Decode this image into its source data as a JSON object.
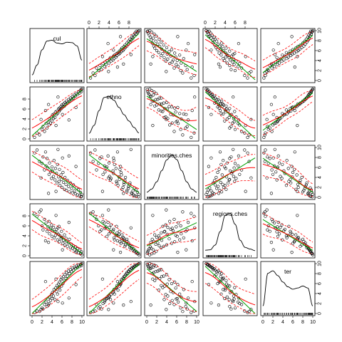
{
  "chart_data": {
    "type": "scatter-matrix",
    "variables": [
      "cul",
      "ethno",
      "minorities.ches",
      "regions.ches",
      "ter"
    ],
    "axis_range": [
      0,
      10
    ],
    "tick_labels": [
      "0",
      "2",
      "4",
      "6",
      "8",
      "10"
    ],
    "top_axis_ticks": [
      "0",
      "2",
      "4",
      "6",
      "8"
    ],
    "diagonal": "density with rug",
    "overlays": [
      "linear fit",
      "loess smooth",
      "loess spread bands"
    ],
    "colors": {
      "points": "#000000",
      "linear": "#00a000",
      "smooth": "#ff0000",
      "density": "#000000",
      "frame": "#000000"
    },
    "density_curves": {
      "cul": [
        [
          0,
          0.05
        ],
        [
          1,
          0.3
        ],
        [
          2,
          0.68
        ],
        [
          3,
          0.9
        ],
        [
          4,
          0.92
        ],
        [
          5,
          0.85
        ],
        [
          6,
          0.83
        ],
        [
          7,
          0.87
        ],
        [
          8,
          0.86
        ],
        [
          9,
          0.78
        ],
        [
          10,
          0.42
        ]
      ],
      "ethno": [
        [
          0,
          0.05
        ],
        [
          1,
          0.25
        ],
        [
          2,
          0.62
        ],
        [
          3,
          0.95
        ],
        [
          4,
          0.98
        ],
        [
          5,
          0.88
        ],
        [
          6,
          0.7
        ],
        [
          7,
          0.52
        ],
        [
          8,
          0.36
        ],
        [
          9,
          0.2
        ],
        [
          10,
          0.06
        ]
      ],
      "minorities.ches": [
        [
          0,
          0.04
        ],
        [
          1,
          0.12
        ],
        [
          2,
          0.3
        ],
        [
          3,
          0.58
        ],
        [
          4,
          0.85
        ],
        [
          5,
          0.98
        ],
        [
          6,
          0.86
        ],
        [
          7,
          0.58
        ],
        [
          8,
          0.3
        ],
        [
          9,
          0.12
        ],
        [
          10,
          0.04
        ]
      ],
      "regions.ches": [
        [
          0,
          0.05
        ],
        [
          1,
          0.06
        ],
        [
          2,
          0.18
        ],
        [
          3,
          0.52
        ],
        [
          4,
          0.92
        ],
        [
          5,
          0.98
        ],
        [
          6,
          0.7
        ],
        [
          7,
          0.3
        ],
        [
          8,
          0.12
        ],
        [
          9,
          0.08
        ],
        [
          10,
          0.04
        ]
      ],
      "ter": [
        [
          0,
          0.1
        ],
        [
          1,
          0.92
        ],
        [
          2,
          0.98
        ],
        [
          3,
          0.86
        ],
        [
          4,
          0.7
        ],
        [
          5,
          0.58
        ],
        [
          6,
          0.52
        ],
        [
          7,
          0.55
        ],
        [
          8,
          0.6
        ],
        [
          9,
          0.55
        ],
        [
          10,
          0.1
        ]
      ]
    },
    "observations": [
      [
        0.5,
        0.3,
        8.9,
        8.5,
        0.2
      ],
      [
        1.0,
        1.2,
        9.5,
        7.9,
        0.5
      ],
      [
        1.5,
        0.8,
        7.2,
        8.8,
        0.4
      ],
      [
        2.0,
        1.9,
        6.8,
        6.0,
        1.1
      ],
      [
        2.2,
        2.5,
        8.1,
        5.2,
        0.9
      ],
      [
        2.5,
        1.5,
        5.5,
        7.3,
        1.8
      ],
      [
        2.8,
        3.1,
        6.3,
        6.6,
        2.3
      ],
      [
        3.0,
        2.2,
        7.8,
        4.9,
        1.4
      ],
      [
        3.2,
        3.4,
        5.9,
        5.8,
        2.9
      ],
      [
        3.4,
        2.8,
        4.6,
        6.9,
        2.0
      ],
      [
        3.5,
        4.0,
        6.9,
        4.4,
        3.3
      ],
      [
        3.7,
        3.2,
        5.1,
        5.5,
        2.6
      ],
      [
        3.9,
        4.4,
        3.8,
        6.2,
        3.8
      ],
      [
        4.0,
        3.6,
        6.1,
        3.9,
        3.0
      ],
      [
        4.1,
        4.8,
        5.3,
        5.0,
        4.2
      ],
      [
        4.3,
        4.1,
        4.2,
        5.7,
        3.5
      ],
      [
        4.4,
        5.0,
        7.4,
        3.6,
        4.8
      ],
      [
        4.6,
        4.3,
        3.5,
        4.8,
        2.8
      ],
      [
        4.7,
        5.4,
        5.8,
        4.1,
        5.1
      ],
      [
        4.9,
        4.9,
        4.8,
        5.3,
        4.4
      ],
      [
        5.0,
        5.6,
        2.9,
        4.6,
        5.6
      ],
      [
        5.1,
        5.1,
        6.6,
        3.2,
        3.9
      ],
      [
        5.3,
        6.0,
        4.1,
        4.3,
        5.9
      ],
      [
        5.4,
        5.5,
        3.2,
        5.9,
        5.2
      ],
      [
        5.5,
        6.2,
        5.6,
        2.8,
        6.3
      ],
      [
        5.6,
        5.8,
        2.4,
        4.0,
        4.7
      ],
      [
        5.8,
        6.5,
        4.5,
        3.4,
        6.8
      ],
      [
        5.9,
        6.1,
        3.6,
        4.9,
        5.5
      ],
      [
        6.0,
        6.8,
        2.0,
        3.7,
        7.1
      ],
      [
        6.2,
        6.4,
        5.0,
        2.5,
        6.0
      ],
      [
        6.3,
        7.0,
        3.0,
        3.1,
        7.4
      ],
      [
        6.5,
        6.6,
        1.6,
        4.2,
        6.6
      ],
      [
        6.6,
        7.3,
        4.0,
        2.2,
        7.8
      ],
      [
        6.8,
        7.0,
        2.6,
        3.5,
        7.0
      ],
      [
        6.9,
        7.6,
        1.4,
        2.9,
        8.2
      ],
      [
        7.1,
        7.2,
        3.4,
        1.9,
        7.5
      ],
      [
        7.3,
        7.9,
        2.2,
        2.6,
        8.5
      ],
      [
        7.5,
        7.6,
        1.1,
        3.3,
        8.0
      ],
      [
        7.7,
        8.2,
        2.9,
        1.6,
        8.8
      ],
      [
        7.9,
        7.9,
        1.8,
        2.3,
        8.4
      ],
      [
        8.1,
        8.5,
        0.9,
        1.5,
        9.1
      ],
      [
        8.3,
        8.2,
        2.5,
        2.0,
        8.7
      ],
      [
        8.5,
        8.8,
        1.3,
        1.2,
        9.3
      ],
      [
        8.7,
        8.6,
        0.7,
        1.8,
        9.0
      ],
      [
        8.9,
        9.1,
        1.9,
        0.9,
        9.5
      ],
      [
        9.1,
        8.9,
        0.5,
        1.4,
        9.2
      ],
      [
        9.3,
        9.4,
        1.5,
        0.6,
        9.7
      ],
      [
        9.5,
        9.2,
        0.3,
        1.1,
        9.4
      ],
      [
        9.7,
        9.7,
        1.0,
        0.4,
        9.8
      ],
      [
        9.9,
        9.5,
        0.2,
        0.8,
        9.6
      ],
      [
        10.0,
        10.0,
        0.6,
        0.2,
        10.0
      ],
      [
        9.8,
        9.9,
        0.1,
        0.5,
        9.9
      ],
      [
        6.1,
        4.9,
        7.9,
        1.2,
        2.1
      ],
      [
        2.7,
        5.7,
        9.1,
        3.0,
        6.4
      ],
      [
        7.4,
        3.8,
        8.3,
        6.7,
        3.1
      ],
      [
        3.3,
        6.9,
        0.8,
        2.7,
        1.7
      ],
      [
        8.8,
        6.3,
        6.2,
        0.7,
        5.8
      ],
      [
        1.8,
        3.9,
        3.9,
        9.2,
        0.8
      ],
      [
        5.2,
        8.4,
        9.6,
        5.6,
        2.4
      ],
      [
        4.8,
        2.7,
        1.2,
        8.1,
        6.9
      ]
    ]
  }
}
